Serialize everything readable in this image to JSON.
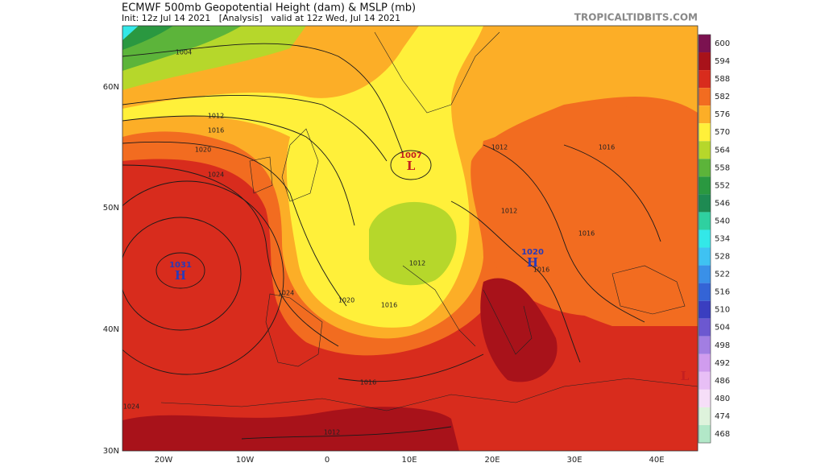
{
  "header": {
    "title": "ECMWF 500mb Geopotential Height (dam) & MSLP (mb)",
    "subtitle": "Init: 12z Jul 14 2021   [Analysis]   valid at 12z Wed, Jul 14 2021",
    "watermark": "TROPICALTIDBITS.COM"
  },
  "map": {
    "latitude_labels": [
      "60N",
      "50N",
      "40N",
      "30N"
    ],
    "longitude_labels": [
      "20W",
      "10W",
      "0",
      "10E",
      "20E",
      "30E",
      "40E"
    ],
    "isobar_labels": [
      1004,
      1012,
      1016,
      1020,
      1024,
      1012,
      1016,
      1012,
      1016,
      1016,
      1012,
      1020,
      1016,
      1024,
      1016,
      1024,
      1012
    ],
    "pressure_centers": [
      {
        "letter": "H",
        "pressure": 1031
      },
      {
        "letter": "L",
        "pressure": 1007
      },
      {
        "letter": "H",
        "pressure": 1020
      },
      {
        "letter": "L"
      }
    ]
  },
  "colorbar": {
    "labels": [
      600,
      594,
      588,
      582,
      576,
      570,
      564,
      558,
      552,
      546,
      540,
      534,
      528,
      522,
      516,
      510,
      504,
      498,
      492,
      486,
      480,
      474,
      468
    ],
    "colors": [
      "#7b1250",
      "#a8121a",
      "#d82c1d",
      "#f26c20",
      "#fcae27",
      "#fff03a",
      "#b6d72b",
      "#5cb43a",
      "#2a9840",
      "#1e8a52",
      "#2fd0a0",
      "#33e8e8",
      "#3fc2f2",
      "#3a90e8",
      "#3464d6",
      "#3a3ec0",
      "#6c58d0",
      "#a27ee2",
      "#d09cee",
      "#e8bff6",
      "#f6def8",
      "#def3dc",
      "#b2e8c8"
    ]
  }
}
